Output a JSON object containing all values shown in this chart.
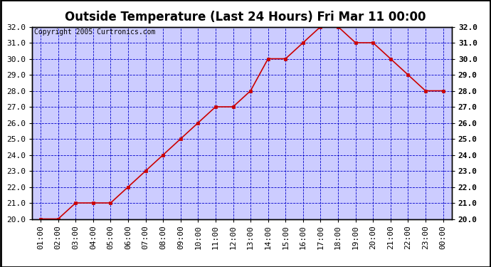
{
  "title": "Outside Temperature (Last 24 Hours) Fri Mar 11 00:00",
  "copyright": "Copyright 2005 Curtronics.com",
  "x_labels": [
    "01:00",
    "02:00",
    "03:00",
    "04:00",
    "05:00",
    "06:00",
    "07:00",
    "08:00",
    "09:00",
    "10:00",
    "11:00",
    "12:00",
    "13:00",
    "14:00",
    "15:00",
    "16:00",
    "17:00",
    "18:00",
    "19:00",
    "20:00",
    "21:00",
    "22:00",
    "23:00",
    "00:00"
  ],
  "y_values": [
    20.0,
    20.0,
    21.0,
    21.0,
    21.0,
    22.0,
    23.0,
    24.0,
    25.0,
    26.0,
    27.0,
    27.0,
    28.0,
    30.0,
    30.0,
    31.0,
    32.0,
    32.0,
    31.0,
    31.0,
    30.0,
    29.0,
    28.0,
    28.0
  ],
  "ylim": [
    20.0,
    32.0
  ],
  "yticks": [
    20.0,
    21.0,
    22.0,
    23.0,
    24.0,
    25.0,
    26.0,
    27.0,
    28.0,
    29.0,
    30.0,
    31.0,
    32.0
  ],
  "line_color": "#cc0000",
  "marker": "s",
  "marker_color": "#cc0000",
  "marker_size": 3,
  "grid_color": "#0000cc",
  "grid_linestyle": "--",
  "grid_linewidth": 0.6,
  "plot_bg_color": "#ccccff",
  "fig_bg_color": "#ffffff",
  "outer_bg_color": "#ffffff",
  "title_fontsize": 12,
  "copyright_fontsize": 7,
  "tick_fontsize": 8,
  "title_color": "#000000",
  "axes_color": "#000000",
  "border_color": "#000000"
}
